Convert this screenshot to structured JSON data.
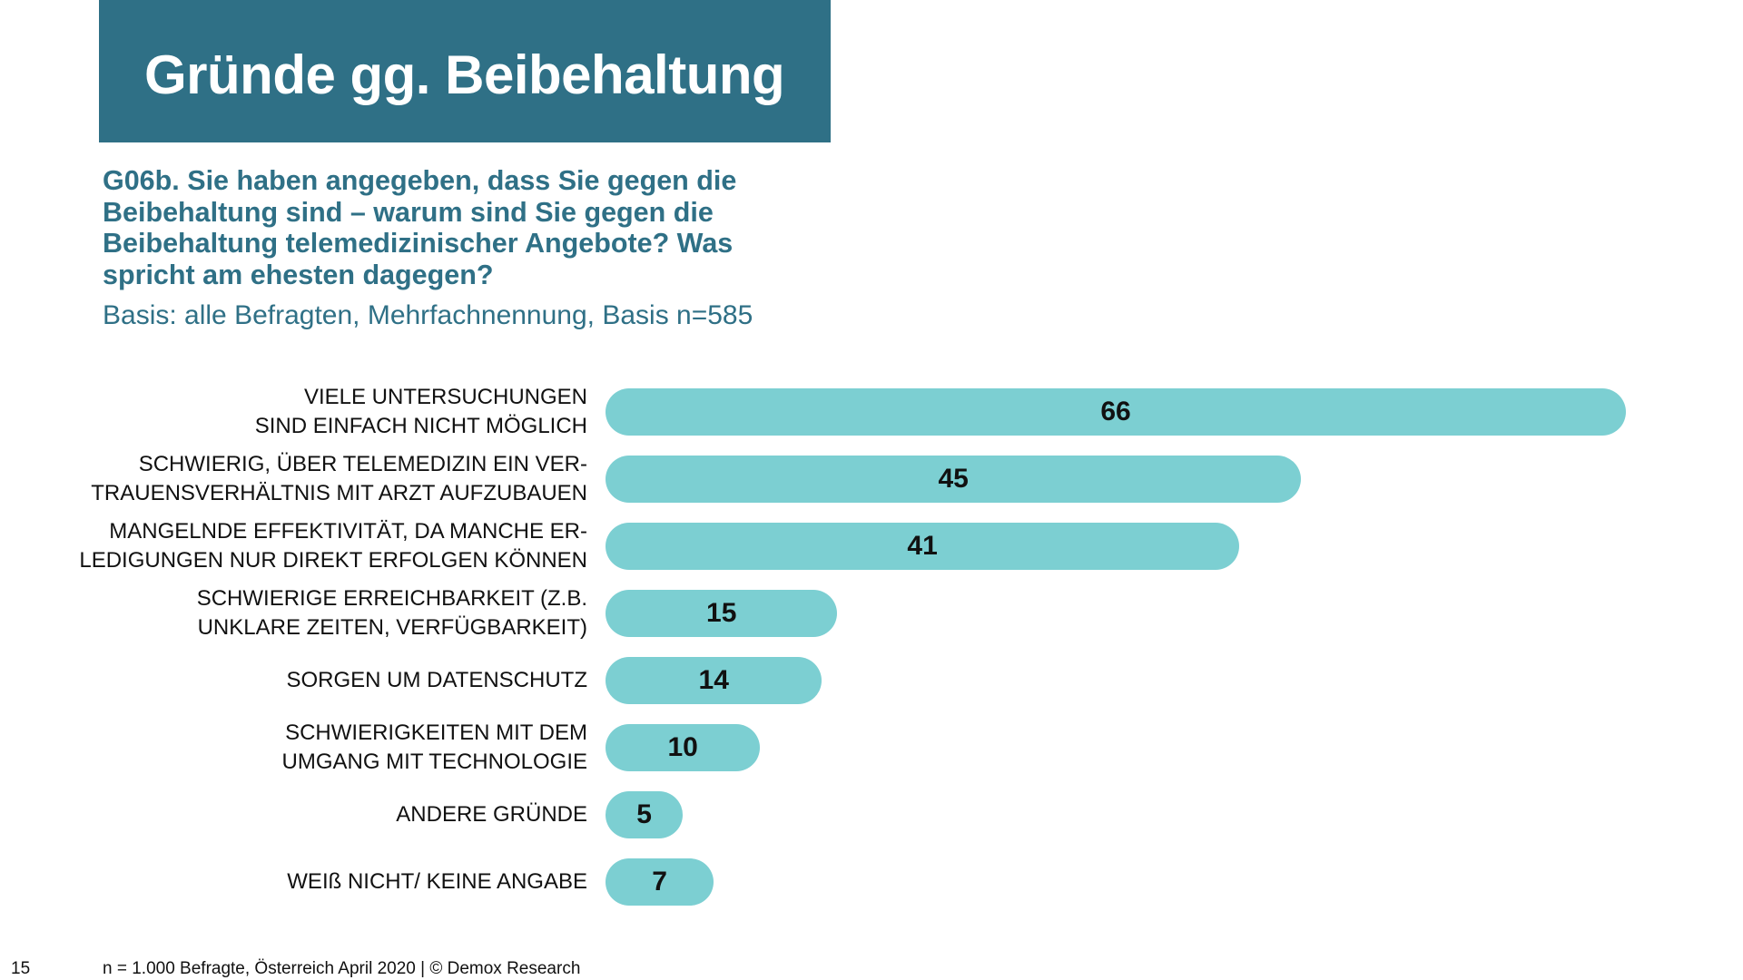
{
  "header": {
    "title": "Gründe gg. Beibehaltung",
    "question": "G06b. Sie haben angegeben, dass Sie gegen die Beibehaltung sind – warum sind Sie gegen die Beibehaltung telemedizinischer Angebote? Was spricht am ehesten dagegen?",
    "basis": "Basis: alle Befragten, Mehrfachnennung, Basis n=585"
  },
  "chart_data": {
    "type": "bar",
    "orientation": "horizontal",
    "categories": [
      "VIELE UNTERSUCHUNGEN\nSIND EINFACH NICHT MÖGLICH",
      "SCHWIERIG, ÜBER TELEMEDIZIN EIN VER-\nTRAUENSVERHÄLTNIS MIT ARZT AUFZUBAUEN",
      "MANGELNDE EFFEKTIVITÄT, DA MANCHE ER-\nLEDIGUNGEN NUR DIREKT ERFOLGEN KÖNNEN",
      "SCHWIERIGE ERREICHBARKEIT (Z.B.\nUNKLARE ZEITEN, VERFÜGBARKEIT)",
      "SORGEN UM DATENSCHUTZ",
      "SCHWIERIGKEITEN MIT DEM\nUMGANG MIT TECHNOLOGIE",
      "ANDERE GRÜNDE",
      "WEIß NICHT/ KEINE ANGABE"
    ],
    "values": [
      66,
      45,
      41,
      15,
      14,
      10,
      5,
      7
    ],
    "bar_color": "#7ccfd2",
    "grid": false,
    "legend": "none"
  },
  "footer": {
    "page_number": "15",
    "note": "n = 1.000 Befragte, Österreich April 2020 | © Demox Research"
  },
  "colors": {
    "accent": "#2f7086",
    "bar": "#7ccfd2"
  }
}
